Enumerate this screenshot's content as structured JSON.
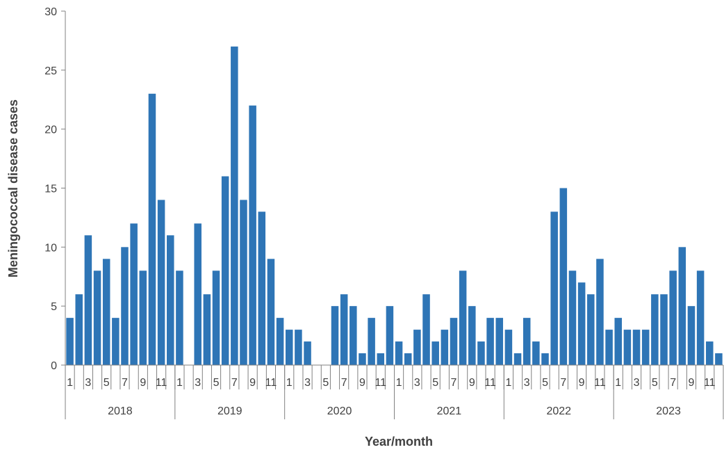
{
  "chart_data": {
    "type": "bar",
    "xlabel": "Year/month",
    "ylabel": "Meningococcal disease cases",
    "ylim": [
      0,
      30
    ],
    "yticks": [
      "0",
      "5",
      "10",
      "15",
      "20",
      "25",
      "30"
    ],
    "bar_color": "#2e75b6",
    "axis_color": "#808080",
    "text_color": "#404040",
    "grid": false,
    "legend": "none",
    "groups": [
      {
        "year": "2018",
        "months": [
          "1",
          "2",
          "3",
          "4",
          "5",
          "6",
          "7",
          "8",
          "9",
          "10",
          "11",
          "12"
        ],
        "values": [
          4,
          6,
          11,
          8,
          9,
          4,
          10,
          12,
          8,
          23,
          14,
          11
        ]
      },
      {
        "year": "2019",
        "months": [
          "1",
          "2",
          "3",
          "4",
          "5",
          "6",
          "7",
          "8",
          "9",
          "10",
          "11",
          "12"
        ],
        "values": [
          8,
          0,
          12,
          6,
          8,
          16,
          27,
          14,
          22,
          13,
          9,
          4
        ]
      },
      {
        "year": "2020",
        "months": [
          "1",
          "2",
          "3",
          "4",
          "5",
          "6",
          "7",
          "8",
          "9",
          "10",
          "11",
          "12"
        ],
        "values": [
          3,
          3,
          2,
          0,
          0,
          5,
          6,
          5,
          1,
          4,
          1,
          5
        ]
      },
      {
        "year": "2021",
        "months": [
          "1",
          "2",
          "3",
          "4",
          "5",
          "6",
          "7",
          "8",
          "9",
          "10",
          "11",
          "12"
        ],
        "values": [
          2,
          1,
          3,
          6,
          2,
          3,
          4,
          8,
          5,
          2,
          4,
          4
        ]
      },
      {
        "year": "2022",
        "months": [
          "1",
          "2",
          "3",
          "4",
          "5",
          "6",
          "7",
          "8",
          "9",
          "10",
          "11",
          "12"
        ],
        "values": [
          3,
          1,
          4,
          2,
          1,
          13,
          15,
          8,
          7,
          6,
          9,
          3
        ]
      },
      {
        "year": "2023",
        "months": [
          "1",
          "2",
          "3",
          "4",
          "5",
          "6",
          "7",
          "8",
          "9",
          "10",
          "11",
          "12"
        ],
        "values": [
          4,
          3,
          3,
          3,
          6,
          6,
          8,
          10,
          5,
          8,
          2,
          1
        ]
      }
    ]
  }
}
